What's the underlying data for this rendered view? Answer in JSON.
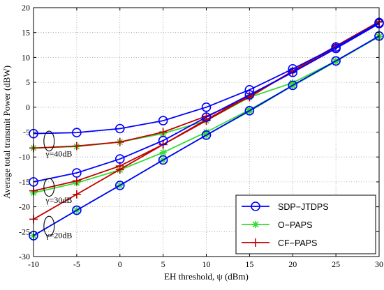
{
  "chart_data": {
    "type": "line",
    "xlabel": "EH threshold, ψ (dBm)",
    "ylabel": "Average total transmit Power (dBW)",
    "xlim": [
      -10,
      30
    ],
    "ylim": [
      -30,
      20
    ],
    "xticks": [
      -10,
      -5,
      0,
      5,
      10,
      15,
      20,
      25,
      30
    ],
    "yticks": [
      -30,
      -25,
      -20,
      -15,
      -10,
      -5,
      0,
      5,
      10,
      15,
      20
    ],
    "grid": true,
    "legend_position": "bottom-right",
    "x": [
      -10,
      -5,
      0,
      5,
      10,
      15,
      20,
      25,
      30
    ],
    "series": [
      {
        "name": "SDP−JTDPS",
        "group": "γ=40dB",
        "color": "#0000ff",
        "marker": "circle",
        "values": [
          -5.3,
          -5.1,
          -4.3,
          -2.7,
          0.0,
          3.5,
          7.7,
          12.1,
          17.0
        ]
      },
      {
        "name": "SDP−JTDPS",
        "group": "γ=30dB",
        "color": "#0000ff",
        "marker": "circle",
        "values": [
          -15.0,
          -13.2,
          -10.4,
          -6.7,
          -2.0,
          2.5,
          7.0,
          11.8,
          16.8
        ]
      },
      {
        "name": "SDP−JTDPS",
        "group": "γ=20dB",
        "color": "#0000ff",
        "marker": "circle",
        "values": [
          -25.8,
          -20.7,
          -15.7,
          -10.6,
          -5.6,
          -0.7,
          4.4,
          9.3,
          14.3
        ]
      },
      {
        "name": "O−PAPS",
        "group": "γ=40dB",
        "color": "#33dd33",
        "marker": "star",
        "values": [
          -8.2,
          -7.9,
          -7.0,
          -5.3,
          -2.7,
          2.0,
          4.9,
          9.3,
          14.2
        ]
      },
      {
        "name": "O−PAPS",
        "group": "γ=30dB",
        "color": "#33dd33",
        "marker": "star",
        "values": [
          -17.2,
          -15.2,
          -12.6,
          -9.1,
          -5.0,
          -0.5,
          4.3,
          9.2,
          14.2
        ]
      },
      {
        "name": "O−PAPS",
        "group": "γ=20dB",
        "color": "#33dd33",
        "marker": "star",
        "values": [
          -25.8,
          -20.7,
          -15.7,
          -10.6,
          -5.6,
          -0.8,
          4.3,
          9.2,
          14.2
        ]
      },
      {
        "name": "CF−PAPS",
        "group": "γ=40dB",
        "color": "#c00000",
        "marker": "plus",
        "values": [
          -8.2,
          -7.8,
          -7.0,
          -5.0,
          -1.8,
          2.0,
          7.3,
          12.3,
          17.2
        ]
      },
      {
        "name": "CF−PAPS",
        "group": "γ=30dB",
        "color": "#c00000",
        "marker": "plus",
        "values": [
          -16.8,
          -14.8,
          -11.8,
          -7.5,
          -2.5,
          2.3,
          7.2,
          12.2,
          17.2
        ]
      },
      {
        "name": "CF−PAPS",
        "group": "γ=20dB",
        "color": "#c00000",
        "marker": "plus",
        "values": [
          -22.5,
          -17.5,
          -12.5,
          -7.5,
          -2.7,
          2.2,
          7.1,
          12.1,
          17.1
        ]
      }
    ],
    "legend": [
      {
        "label": "SDP−JTDPS",
        "color": "#0000ff",
        "marker": "circle"
      },
      {
        "label": "O−PAPS",
        "color": "#33dd33",
        "marker": "star"
      },
      {
        "label": "CF−PAPS",
        "color": "#c00000",
        "marker": "plus"
      }
    ],
    "annotations": [
      {
        "text": "γ=40dB",
        "x": -8.6,
        "y": -9.9
      },
      {
        "text": "γ=30dB",
        "x": -8.6,
        "y": -19.2
      },
      {
        "text": "γ=20dB",
        "x": -8.6,
        "y": -26.3
      }
    ],
    "ellipses": [
      {
        "x": -8.2,
        "y": -6.8,
        "rx": 0.6,
        "ry": 2.0
      },
      {
        "x": -8.2,
        "y": -16.1,
        "rx": 0.6,
        "ry": 1.8
      },
      {
        "x": -8.2,
        "y": -23.9,
        "rx": 0.6,
        "ry": 2.0
      }
    ]
  }
}
